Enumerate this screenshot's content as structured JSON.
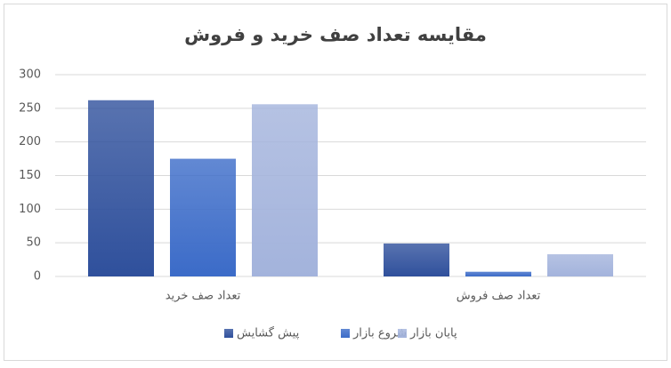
{
  "chart_data": {
    "type": "bar",
    "title": "مقایسه تعداد صف خرید و فروش",
    "categories": [
      "تعداد صف خرید",
      "تعداد صف فروش"
    ],
    "series": [
      {
        "name": "پیش گشایش",
        "color": "#2f509c",
        "values": [
          262,
          49
        ]
      },
      {
        "name": "شروع بازار",
        "color": "#3b6bc8",
        "values": [
          175,
          7
        ]
      },
      {
        "name": "پایان بازار",
        "color": "#a3b3dc",
        "values": [
          256,
          33
        ]
      }
    ],
    "ylim": [
      0,
      300
    ],
    "yticks": [
      0,
      50,
      100,
      150,
      200,
      250,
      300
    ],
    "grid": true
  }
}
